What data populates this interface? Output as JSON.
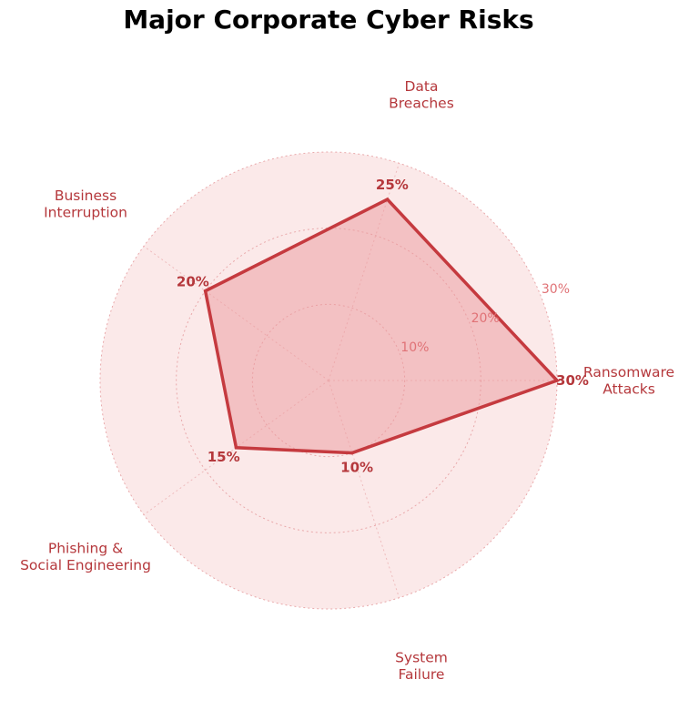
{
  "chart_data": {
    "type": "radar",
    "title": "Major Corporate Cyber Risks",
    "categories": [
      [
        "Ransomware",
        "Attacks"
      ],
      [
        "Data",
        "Breaches"
      ],
      [
        "Business",
        "Interruption"
      ],
      [
        "Phishing &",
        "Social Engineering"
      ],
      [
        "System",
        "Failure"
      ]
    ],
    "values": [
      30,
      25,
      20,
      15,
      10
    ],
    "value_labels": [
      "30%",
      "25%",
      "20%",
      "15%",
      "10%"
    ],
    "rlim": [
      0,
      30
    ],
    "ticks": [
      10,
      20,
      30
    ],
    "tick_labels": [
      "10%",
      "20%",
      "30%"
    ],
    "grid": true,
    "colors": {
      "title": "#b5383c",
      "line": "#c53a3f",
      "fill": "#ec9a9d",
      "background": "#fbe9e9",
      "grid": "#e9a9ab",
      "category_text": "#b5383c",
      "tick_text": "#e07276",
      "data_label_text": "#b5383c"
    }
  }
}
